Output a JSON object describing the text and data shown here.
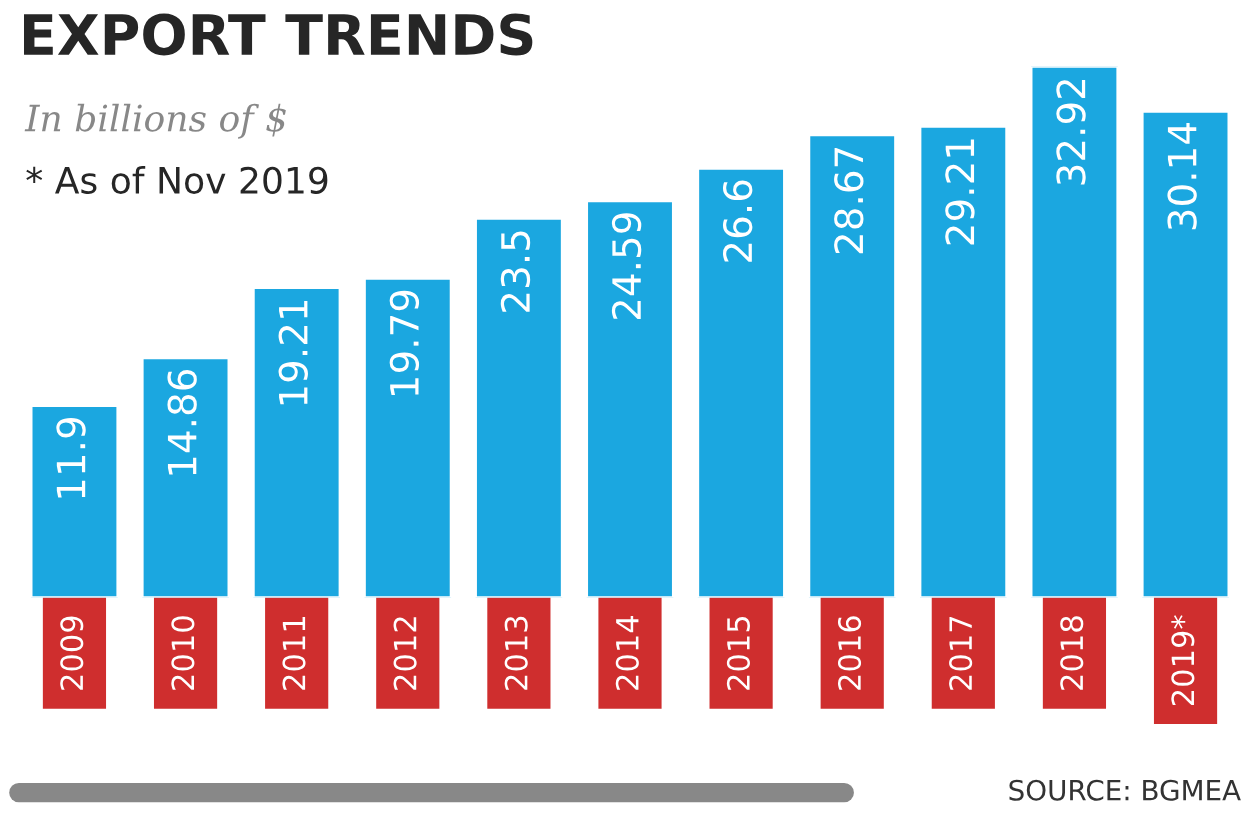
{
  "chart_data": {
    "type": "bar",
    "title": "EXPORT TRENDS",
    "subtitle": "In billions of $",
    "annotations": [
      "* As of Nov 2019",
      "SOURCE: BGMEA"
    ],
    "categories": [
      "2009",
      "2010",
      "2011",
      "2012",
      "2013",
      "2014",
      "2015",
      "2016",
      "2017",
      "2018",
      "2019*"
    ],
    "values": [
      11.9,
      14.86,
      19.21,
      19.79,
      23.5,
      24.59,
      26.6,
      28.67,
      29.21,
      32.92,
      30.14
    ],
    "color": "#1ba7e0",
    "data_labels": true
  }
}
